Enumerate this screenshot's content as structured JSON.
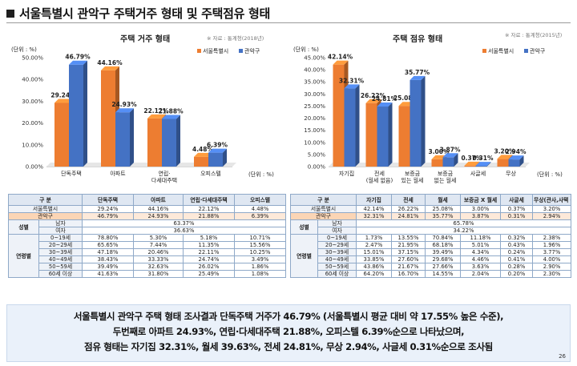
{
  "page": {
    "title": "서울특별시 관악구 주택거주 형태 및 주택점유 형태",
    "number": "26"
  },
  "colors": {
    "seoul": "#ed7d31",
    "gwanak": "#4472c4"
  },
  "chart_data": [
    {
      "type": "bar",
      "title": "주택 거주 형태",
      "source": "※ 자료 : 통계청(2018년)",
      "unit_y": "(단위 : %)",
      "unit_x": "(단위 : %)",
      "categories": [
        "단독주택",
        "아파트",
        "연립·다세대주택",
        "오피스텔"
      ],
      "category_lines": [
        [
          "단독주택"
        ],
        [
          "아파트"
        ],
        [
          "연립·",
          "다세대주택"
        ],
        [
          "오피스텔"
        ]
      ],
      "series": [
        {
          "name": "서울특별시",
          "values": [
            29.24,
            44.16,
            22.12,
            4.48
          ],
          "labels": [
            "29.24%",
            "44.16%",
            "22.12%",
            "4.48%"
          ]
        },
        {
          "name": "관악구",
          "values": [
            46.79,
            24.93,
            21.88,
            6.39
          ],
          "labels": [
            "46.79%",
            "24.93%",
            "21.88%",
            "6.39%"
          ]
        }
      ],
      "ylim": [
        0,
        50
      ],
      "yticks": [
        "0.00%",
        "10.00%",
        "20.00%",
        "30.00%",
        "40.00%",
        "50.00%"
      ],
      "ytick_values": [
        0,
        10,
        20,
        30,
        40,
        50
      ],
      "legend": "top-right"
    },
    {
      "type": "bar",
      "title": "주택 점유 형태",
      "source": "※ 자료 : 통계청(2015년)",
      "unit_y": "(단위 : %)",
      "unit_x": "(단위 : %)",
      "categories": [
        "자기집",
        "전세(월세 없음)",
        "보증금 있는 월세",
        "보증금 없는 월세",
        "사글세",
        "무상"
      ],
      "category_lines": [
        [
          "자기집"
        ],
        [
          "전세",
          "(월세 없음)"
        ],
        [
          "보증금",
          "있는 월세"
        ],
        [
          "보증금",
          "없는 월세"
        ],
        [
          "사글세"
        ],
        [
          "무상"
        ]
      ],
      "series": [
        {
          "name": "서울특별시",
          "values": [
            42.14,
            26.22,
            25.08,
            3.0,
            0.37,
            3.2
          ],
          "labels": [
            "42.14%",
            "26.22%",
            "25.08%",
            "3.00%",
            "0.37%",
            "3.20%"
          ]
        },
        {
          "name": "관악구",
          "values": [
            32.31,
            24.81,
            35.77,
            3.87,
            0.31,
            2.94
          ],
          "labels": [
            "32.31%",
            "24.81%",
            "35.77%",
            "3.87%",
            "0.31%",
            "2.94%"
          ]
        }
      ],
      "ylim": [
        0,
        45
      ],
      "yticks": [
        "0.00%",
        "5.00%",
        "10.00%",
        "15.00%",
        "20.00%",
        "25.00%",
        "30.00%",
        "35.00%",
        "40.00%",
        "45.00%"
      ],
      "ytick_values": [
        0,
        5,
        10,
        15,
        20,
        25,
        30,
        35,
        40,
        45
      ],
      "legend": "top-right"
    }
  ],
  "tables": {
    "left": {
      "header": [
        "구 분",
        "단독주택",
        "아파트",
        "연립·다세대주택",
        "오피스텔"
      ],
      "rows": [
        {
          "group": "",
          "label": "서울특별시",
          "cells": [
            "29.24%",
            "44.16%",
            "22.12%",
            "4.48%"
          ],
          "highlight": false
        },
        {
          "group": "",
          "label": "관악구",
          "cells": [
            "46.79%",
            "24.93%",
            "21.88%",
            "6.39%"
          ],
          "highlight": true
        }
      ],
      "gender_label": "성별",
      "gender": [
        {
          "label": "남자",
          "value": "63.37%"
        },
        {
          "label": "여자",
          "value": "36.63%"
        }
      ],
      "age_label": "연령별",
      "ages": [
        {
          "label": "0~19세",
          "cells": [
            "78.80%",
            "5.30%",
            "5.18%",
            "10.71%"
          ]
        },
        {
          "label": "20~29세",
          "cells": [
            "65.65%",
            "7.44%",
            "11.35%",
            "15.56%"
          ]
        },
        {
          "label": "30~39세",
          "cells": [
            "47.18%",
            "20.46%",
            "22.11%",
            "10.25%"
          ]
        },
        {
          "label": "40~49세",
          "cells": [
            "38.43%",
            "33.33%",
            "24.74%",
            "3.49%"
          ]
        },
        {
          "label": "50~59세",
          "cells": [
            "39.49%",
            "32.63%",
            "26.02%",
            "1.86%"
          ]
        },
        {
          "label": "60세 이상",
          "cells": [
            "41.63%",
            "31.80%",
            "25.49%",
            "1.08%"
          ]
        }
      ]
    },
    "right": {
      "header": [
        "구 분",
        "자기집",
        "전세",
        "월세",
        "보증금 X 월세",
        "사글세",
        "무상(관사,사택 등)"
      ],
      "rows": [
        {
          "label": "서울특별시",
          "cells": [
            "42.14%",
            "26.22%",
            "25.08%",
            "3.00%",
            "0.37%",
            "3.20%"
          ],
          "highlight": false
        },
        {
          "label": "관악구",
          "cells": [
            "32.31%",
            "24.81%",
            "35.77%",
            "3.87%",
            "0.31%",
            "2.94%"
          ],
          "highlight": true
        }
      ],
      "gender_label": "성별",
      "gender": [
        {
          "label": "남자",
          "value": "65.78%"
        },
        {
          "label": "여자",
          "value": "34.22%"
        }
      ],
      "age_label": "연령별",
      "ages": [
        {
          "label": "0~19세",
          "cells": [
            "1.73%",
            "13.55%",
            "70.84%",
            "11.18%",
            "0.32%",
            "2.38%"
          ]
        },
        {
          "label": "20~29세",
          "cells": [
            "2.47%",
            "21.95%",
            "68.18%",
            "5.01%",
            "0.43%",
            "1.96%"
          ]
        },
        {
          "label": "30~39세",
          "cells": [
            "15.01%",
            "37.15%",
            "39.49%",
            "4.34%",
            "0.24%",
            "3.77%"
          ]
        },
        {
          "label": "40~49세",
          "cells": [
            "33.85%",
            "27.60%",
            "29.68%",
            "4.46%",
            "0.41%",
            "4.00%"
          ]
        },
        {
          "label": "50~59세",
          "cells": [
            "43.86%",
            "21.67%",
            "27.66%",
            "3.63%",
            "0.28%",
            "2.90%"
          ]
        },
        {
          "label": "60세 이상",
          "cells": [
            "64.20%",
            "16.70%",
            "14.55%",
            "2.04%",
            "0.20%",
            "2.30%"
          ]
        }
      ]
    }
  },
  "summary": [
    "서울특별시 관악구 주택 형태 조사결과 단독주택 거주가 46.79% (서울특별시 평균 대비 약 17.55% 높은 수준),",
    "두번째로 아파트 24.93%, 연립·다세대주택 21.88%, 오피스텔 6.39%순으로 나타났으며,",
    "점유 형태는 자기집 32.31%, 월세 39.63%, 전세 24.81%, 무상 2.94%, 사글세 0.31%순으로 조사됨"
  ]
}
